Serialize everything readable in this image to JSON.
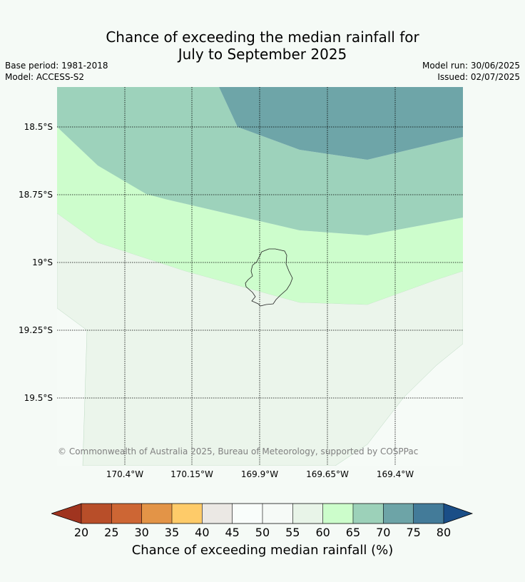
{
  "title_line1": "Chance of exceeding the median rainfall for",
  "title_line2": "July to September 2025",
  "base_period": "Base period: 1981-2018",
  "model": "Model: ACCESS-S2",
  "model_run": "Model run: 30/06/2025",
  "issued": "Issued: 02/07/2025",
  "copyright": "© Commonwealth of Australia 2025, Bureau of Meteorology, supported by COSPPac",
  "lat_labels": [
    "18.5°S",
    "18.75°S",
    "19°S",
    "19.25°S",
    "19.5°S"
  ],
  "lon_labels": [
    "170.4°W",
    "170.15°W",
    "169.9°W",
    "169.65°W",
    "169.4°W"
  ],
  "colorbar": {
    "title": "Chance of exceeding median rainfall (%)",
    "ticks": [
      "20",
      "25",
      "30",
      "35",
      "40",
      "45",
      "50",
      "55",
      "60",
      "65",
      "70",
      "75",
      "80"
    ],
    "colors": [
      "#a0341f",
      "#b84e29",
      "#cd6634",
      "#e39447",
      "#fecb69",
      "#ebe8e4",
      "#f9fdfb",
      "#f6faf7",
      "#e8f4e8",
      "#ccfdcb",
      "#9cd1b9",
      "#6da4a7",
      "#437b99",
      "#1a4e87"
    ]
  },
  "map_colors": {
    "band_75_80": "#6ea5a8",
    "band_70_75": "#9dd2bb",
    "band_65_70": "#cdfdcc",
    "band_55_60": "#ebf5eb",
    "band_50_55": "#f6fbf7"
  }
}
